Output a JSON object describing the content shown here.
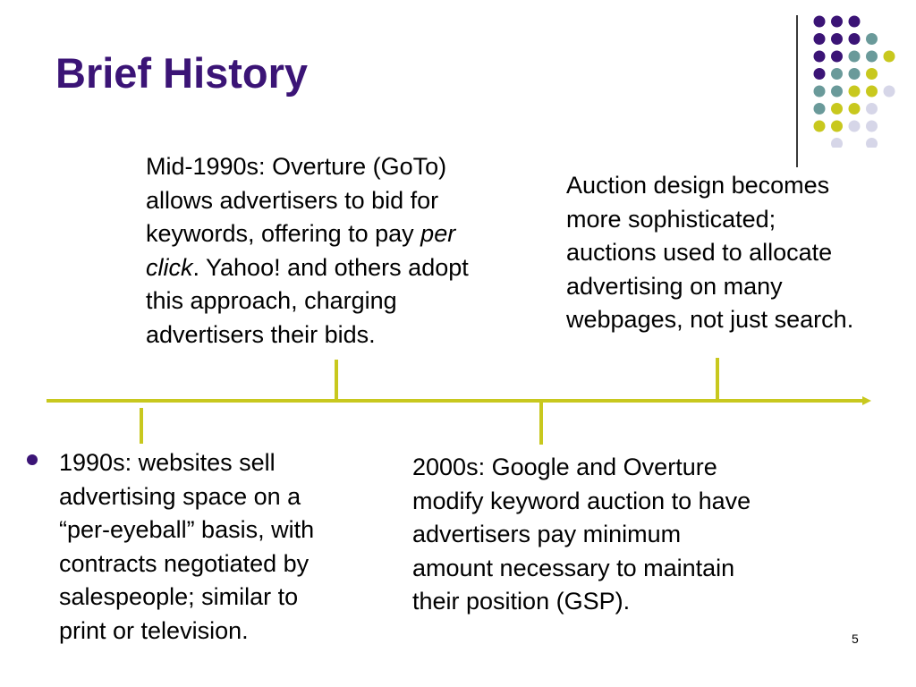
{
  "slide": {
    "title": "Brief History",
    "page_number": "5"
  },
  "events": {
    "mid_1990s": {
      "line1": "Mid-1990s: Overture (GoTo)",
      "line2": "allows advertisers to bid for",
      "line3_pre": "keywords, offering to pay ",
      "line3_em": "per",
      "line4_em": "click",
      "line4_post": ". Yahoo! and others adopt",
      "line5": "this approach, charging",
      "line6": "advertisers their bids."
    },
    "auction_design": {
      "line1": "Auction design becomes",
      "line2": "more sophisticated;",
      "line3": "auctions used to allocate",
      "line4": "advertising on many",
      "line5": "webpages, not just search."
    },
    "early_1990s": {
      "line1": "1990s: websites sell",
      "line2": "advertising space on a",
      "line3": "“per-eyeball” basis, with",
      "line4": "contracts negotiated by",
      "line5": "salespeople; similar to",
      "line6": "print or television."
    },
    "2000s": {
      "line1": "2000s: Google and Overture",
      "line2": "modify keyword auction to have",
      "line3": "advertisers pay minimum",
      "line4": "amount necessary to maintain",
      "line5": "their position (GSP)."
    }
  },
  "colors": {
    "title": "#3b1476",
    "timeline": "#c8c81e",
    "dot_purple": "#3b1476",
    "dot_teal": "#6a9a9a",
    "dot_yellow": "#c8c81e",
    "dot_lavender": "#d6d6e8"
  }
}
